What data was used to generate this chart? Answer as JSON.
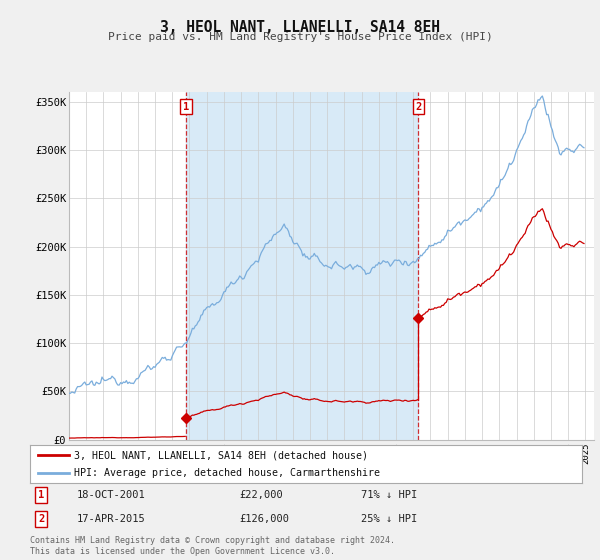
{
  "title": "3, HEOL NANT, LLANELLI, SA14 8EH",
  "subtitle": "Price paid vs. HM Land Registry's House Price Index (HPI)",
  "ylim": [
    0,
    360000
  ],
  "yticks": [
    0,
    50000,
    100000,
    150000,
    200000,
    250000,
    300000,
    350000
  ],
  "ytick_labels": [
    "£0",
    "£50K",
    "£100K",
    "£150K",
    "£200K",
    "£250K",
    "£300K",
    "£350K"
  ],
  "hpi_color": "#7aaddc",
  "hpi_fill_color": "#d8eaf7",
  "price_color": "#cc0000",
  "marker1_price": 22000,
  "marker2_price": 126000,
  "sale1_date": 2001.79,
  "sale2_date": 2015.29,
  "sale1_text": "18-OCT-2001",
  "sale1_price_text": "£22,000",
  "sale1_hpi_text": "71% ↓ HPI",
  "sale2_text": "17-APR-2015",
  "sale2_price_text": "£126,000",
  "sale2_hpi_text": "25% ↓ HPI",
  "legend_red": "3, HEOL NANT, LLANELLI, SA14 8EH (detached house)",
  "legend_blue": "HPI: Average price, detached house, Carmarthenshire",
  "footer": "Contains HM Land Registry data © Crown copyright and database right 2024.\nThis data is licensed under the Open Government Licence v3.0.",
  "bg_color": "#f0f0f0",
  "plot_bg_color": "#ffffff",
  "grid_color": "#cccccc"
}
